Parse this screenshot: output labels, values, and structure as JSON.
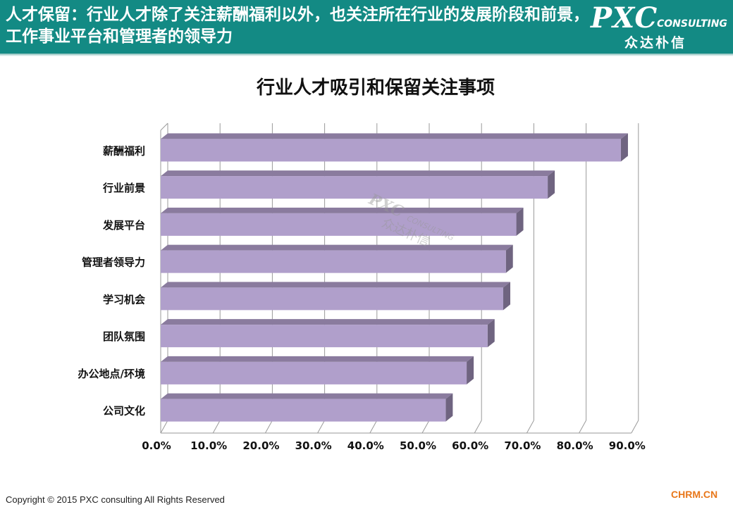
{
  "header": {
    "title": "人才保留：行业人才除了关注薪酬福利以外，也关注所在行业的发展阶段和前景，工作事业平台和管理者的领导力",
    "logo_main": "PXC",
    "logo_sub": "CONSULTING",
    "logo_cn": "众达朴信",
    "background_color": "#138a84"
  },
  "watermark": {
    "main": "PXC",
    "sub": "CONSULTING",
    "cn": "众达朴信"
  },
  "chart_data": {
    "type": "bar",
    "orientation": "horizontal",
    "title": "行业人才吸引和保留关注事项",
    "categories": [
      "薪酬福利",
      "行业前景",
      "发展平台",
      "管理者领导力",
      "学习机会",
      "团队氛围",
      "办公地点/环境",
      "公司文化"
    ],
    "values": [
      0.88,
      0.74,
      0.68,
      0.66,
      0.655,
      0.625,
      0.585,
      0.545
    ],
    "xlim": [
      0,
      0.9
    ],
    "x_ticks": [
      "0.0%",
      "10.0%",
      "20.0%",
      "30.0%",
      "40.0%",
      "50.0%",
      "60.0%",
      "70.0%",
      "80.0%",
      "90.0%"
    ],
    "xlabel": "",
    "ylabel": "",
    "grid": true,
    "bar_color": "#b09fcb",
    "bar_top_color": "#8a7b9e",
    "bar_side_color": "#6f6480",
    "style": "3d"
  },
  "footer": {
    "copyright": "Copyright © 2015  PXC consulting All Rights Reserved",
    "brand": "CHRM.CN"
  }
}
